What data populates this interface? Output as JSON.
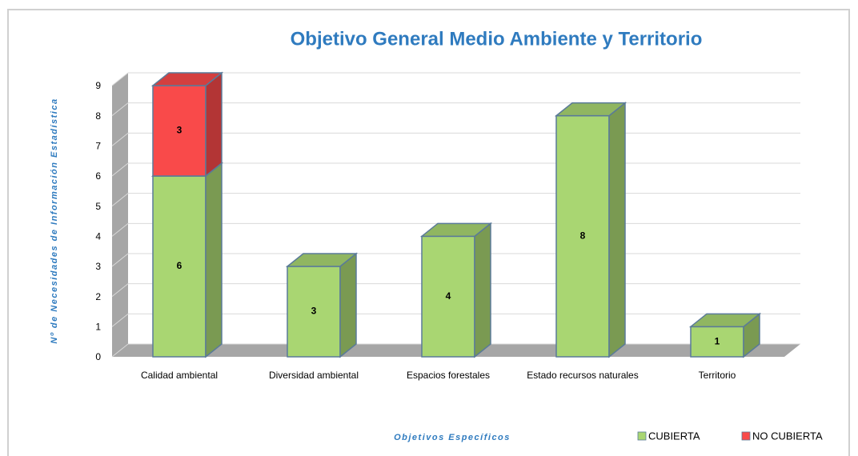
{
  "chart_data": {
    "type": "bar3d_stacked",
    "title": "Objetivo General Medio Ambiente y Territorio",
    "y_label": "Nº de Necesidades  de Información Estadística",
    "x_label": "Objetivos Específicos",
    "categories": [
      "Calidad ambiental",
      "Diversidad ambiental",
      "Espacios forestales",
      "Estado recursos naturales",
      "Territorio"
    ],
    "series": [
      {
        "name": "CUBIERTA",
        "color": "#a9d672",
        "values": [
          6,
          3,
          4,
          8,
          1
        ]
      },
      {
        "name": "NO CUBIERTA",
        "color": "#f94a4a",
        "values": [
          3,
          null,
          null,
          null,
          null
        ]
      }
    ],
    "ylim": [
      0,
      9
    ],
    "yticks": [
      0,
      1,
      2,
      3,
      4,
      5,
      6,
      7,
      8,
      9
    ],
    "grid": true,
    "legend": "bottom-right"
  }
}
